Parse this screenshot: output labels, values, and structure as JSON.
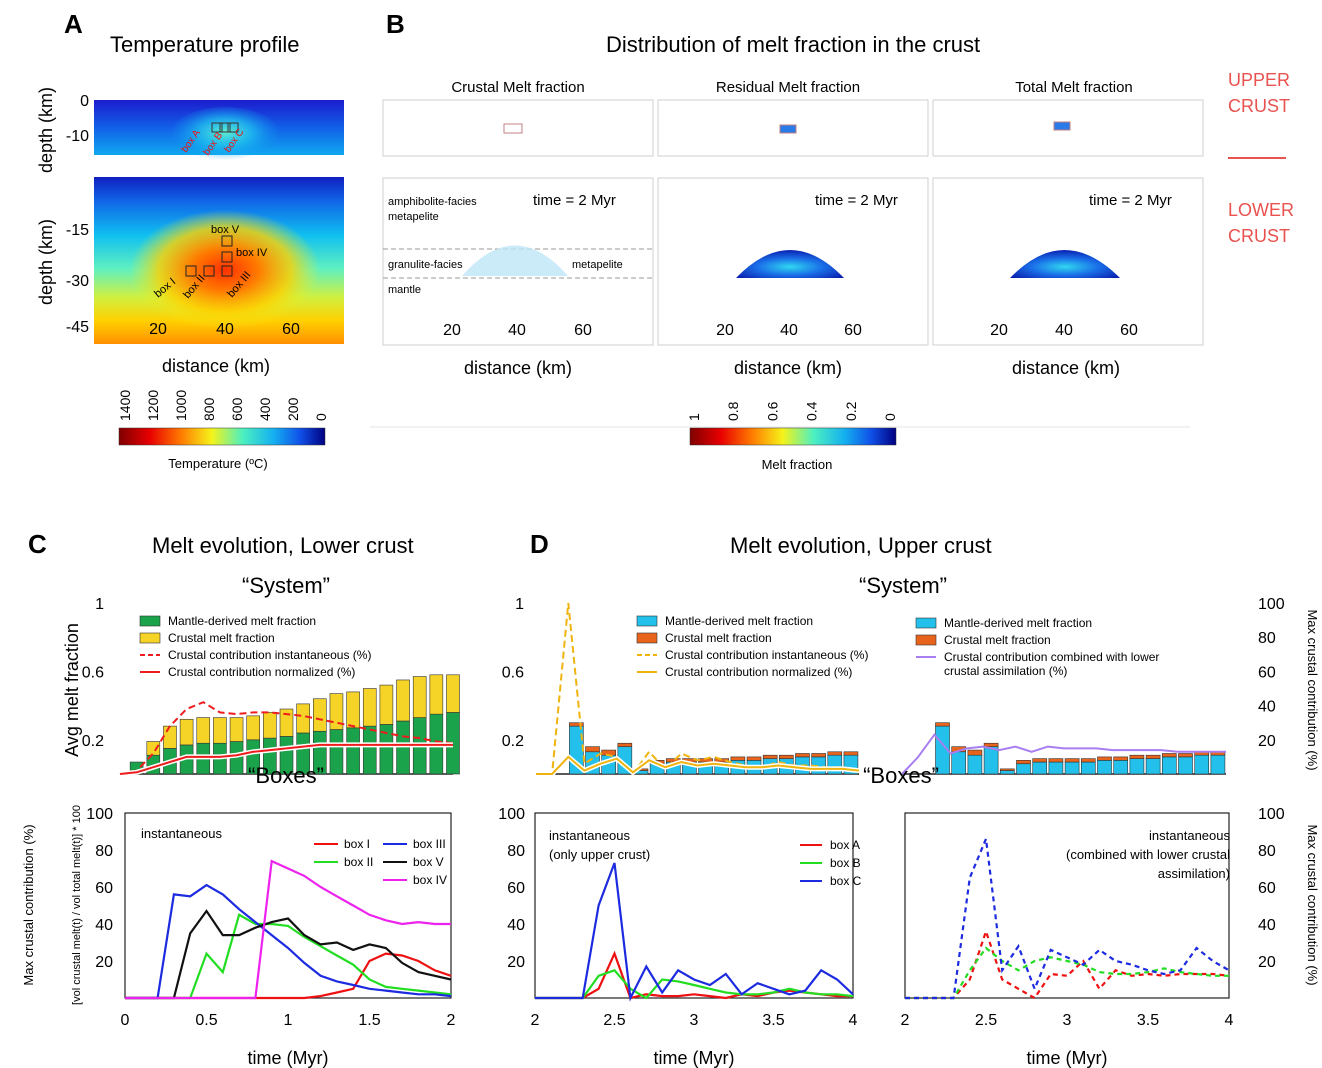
{
  "panels": {
    "A": {
      "letter": "A",
      "title": "Temperature profile"
    },
    "B": {
      "letter": "B",
      "title": "Distribution of melt fraction in the crust"
    },
    "C": {
      "letter": "C",
      "title": "Melt evolution, Lower crust"
    },
    "D": {
      "letter": "D",
      "title": "Melt evolution, Upper crust"
    }
  },
  "colors": {
    "mantle_green": "#1aa34a",
    "crustal_yellow": "#f5d327",
    "cyan": "#22c0ea",
    "orange": "#e8641d",
    "red": "#ee1c1c",
    "gold": "#efb40f",
    "purple": "#a87ef0",
    "box_red": "#ee1111",
    "box_green": "#22dd22",
    "box_blue": "#1d2be0",
    "box_black": "#111111",
    "box_magenta": "#ee22ee",
    "label_red": "#e8524f"
  },
  "temperature": {
    "ylabel": "depth (km)",
    "upper_ticks": [
      "0",
      "-10"
    ],
    "lower_ticks": [
      "-15",
      "-30",
      "-45"
    ],
    "x_ticks": [
      "20",
      "40",
      "60"
    ],
    "xlabel": "distance (km)",
    "upper_boxes": [
      "box A",
      "box B",
      "box C"
    ],
    "lower_boxes": [
      "box V",
      "box IV",
      "box I",
      "box II",
      "box III"
    ],
    "colorbar_ticks": [
      "1400",
      "1200",
      "1000",
      "800",
      "600",
      "400",
      "200",
      "0"
    ],
    "colorbar_label": "Temperature (ºC)"
  },
  "melt": {
    "columns": [
      "Crustal Melt fraction",
      "Residual Melt fraction",
      "Total Melt fraction"
    ],
    "time_label": "time = 2 Myr",
    "rock_labels": [
      "amphibolite-facies",
      "metapelite",
      "granulite-facies",
      "metapelite",
      "mantle"
    ],
    "x_ticks": [
      "20",
      "40",
      "60"
    ],
    "xlabel": "distance (km)",
    "upper_crust": "UPPER CRUST",
    "lower_crust": "LOWER CRUST",
    "colorbar_ticks": [
      "1",
      "0.8",
      "0.6",
      "0.4",
      "0.2",
      "0"
    ],
    "colorbar_label": "Melt fraction"
  },
  "chart_data": [
    {
      "id": "C-system",
      "type": "bar",
      "title": "“System”",
      "ylabel": "Avg melt fraction",
      "ylim": [
        0,
        1
      ],
      "yticks": [
        "1",
        "0.6",
        "0.2"
      ],
      "xlim": [
        0,
        2
      ],
      "x": [
        0.1,
        0.2,
        0.3,
        0.4,
        0.5,
        0.6,
        0.7,
        0.8,
        0.9,
        1.0,
        1.1,
        1.2,
        1.3,
        1.4,
        1.5,
        1.6,
        1.7,
        1.8,
        1.9,
        2.0
      ],
      "series": [
        {
          "name": "Mantle-derived melt fraction",
          "kind": "bar",
          "values": [
            0.07,
            0.11,
            0.15,
            0.17,
            0.18,
            0.18,
            0.19,
            0.2,
            0.21,
            0.22,
            0.24,
            0.25,
            0.26,
            0.27,
            0.28,
            0.29,
            0.31,
            0.33,
            0.35,
            0.36
          ]
        },
        {
          "name": "Crustal melt fraction",
          "kind": "stack",
          "values": [
            0.0,
            0.08,
            0.13,
            0.15,
            0.15,
            0.15,
            0.14,
            0.14,
            0.15,
            0.16,
            0.17,
            0.19,
            0.21,
            0.21,
            0.22,
            0.23,
            0.24,
            0.24,
            0.23,
            0.22
          ]
        },
        {
          "name": "Crustal contribution instantaneous (%)",
          "kind": "dashed",
          "x": [
            0,
            0.1,
            0.2,
            0.3,
            0.4,
            0.5,
            0.6,
            0.7,
            0.8,
            0.9,
            1.0,
            1.1,
            1.2,
            1.3,
            1.4,
            1.5,
            1.6,
            1.7,
            1.8,
            1.9,
            2.0
          ],
          "values": [
            0.0,
            0.02,
            0.12,
            0.28,
            0.38,
            0.42,
            0.36,
            0.35,
            0.36,
            0.36,
            0.35,
            0.34,
            0.32,
            0.3,
            0.28,
            0.26,
            0.24,
            0.22,
            0.21,
            0.19,
            0.18
          ]
        },
        {
          "name": "Crustal contribution normalized (%)",
          "kind": "line",
          "x": [
            0,
            0.1,
            0.2,
            0.3,
            0.4,
            0.5,
            0.6,
            0.7,
            0.8,
            0.9,
            1.0,
            1.1,
            1.2,
            1.3,
            1.4,
            1.5,
            1.6,
            1.7,
            1.8,
            1.9,
            2.0
          ],
          "values": [
            0.0,
            0.01,
            0.04,
            0.07,
            0.1,
            0.1,
            0.1,
            0.11,
            0.13,
            0.14,
            0.15,
            0.16,
            0.17,
            0.17,
            0.17,
            0.17,
            0.17,
            0.17,
            0.17,
            0.17,
            0.17
          ]
        }
      ]
    },
    {
      "id": "D-system-upper",
      "type": "bar",
      "title": "“System”",
      "ylim": [
        0,
        1
      ],
      "yticks": [
        "1",
        "0.6",
        "0.2"
      ],
      "xlim": [
        2,
        4
      ],
      "x": [
        2.25,
        2.35,
        2.45,
        2.55,
        2.65,
        2.75,
        2.85,
        2.95,
        3.05,
        3.15,
        3.25,
        3.35,
        3.45,
        3.55,
        3.65,
        3.75,
        3.85,
        3.95
      ],
      "series": [
        {
          "name": "Mantle-derived melt fraction",
          "kind": "bar",
          "values": [
            0.28,
            0.13,
            0.11,
            0.16,
            0.02,
            0.06,
            0.07,
            0.07,
            0.07,
            0.07,
            0.08,
            0.08,
            0.09,
            0.09,
            0.1,
            0.1,
            0.11,
            0.11
          ]
        },
        {
          "name": "Crustal melt fraction",
          "kind": "stack",
          "values": [
            0.02,
            0.03,
            0.03,
            0.02,
            0.01,
            0.02,
            0.02,
            0.02,
            0.02,
            0.02,
            0.02,
            0.02,
            0.02,
            0.02,
            0.02,
            0.02,
            0.02,
            0.02
          ]
        },
        {
          "name": "Crustal contribution instantaneous (%)",
          "kind": "dashed",
          "x": [
            2.0,
            2.1,
            2.2,
            2.3,
            2.4,
            2.5,
            2.6,
            2.7,
            2.8,
            2.9,
            3.0,
            3.1,
            3.2,
            3.3,
            3.4,
            3.5,
            3.6,
            3.7,
            3.8,
            3.9,
            4.0
          ],
          "values": [
            0.0,
            0.0,
            1.0,
            0.06,
            0.12,
            0.1,
            0.0,
            0.13,
            0.03,
            0.12,
            0.08,
            0.1,
            0.07,
            0.05,
            0.04,
            0.07,
            0.05,
            0.05,
            0.04,
            0.04,
            0.02
          ]
        },
        {
          "name": "Crustal contribution normalized (%)",
          "kind": "line",
          "x": [
            2.0,
            2.1,
            2.2,
            2.3,
            2.4,
            2.5,
            2.6,
            2.7,
            2.8,
            2.9,
            3.0,
            3.1,
            3.2,
            3.3,
            3.4,
            3.5,
            3.6,
            3.7,
            3.8,
            3.9,
            4.0
          ],
          "values": [
            0.0,
            0.0,
            0.1,
            0.02,
            0.06,
            0.09,
            0.01,
            0.08,
            0.04,
            0.07,
            0.05,
            0.06,
            0.05,
            0.04,
            0.04,
            0.05,
            0.04,
            0.03,
            0.03,
            0.03,
            0.02
          ]
        }
      ]
    },
    {
      "id": "D-system-combined",
      "type": "bar",
      "ylabel": "Max crustal contribution (%)",
      "ylim": [
        0,
        100
      ],
      "yticks": [
        "100",
        "80",
        "60",
        "40",
        "20"
      ],
      "xlim": [
        2,
        4
      ],
      "x": [
        2.25,
        2.35,
        2.45,
        2.55,
        2.65,
        2.75,
        2.85,
        2.95,
        3.05,
        3.15,
        3.25,
        3.35,
        3.45,
        3.55,
        3.65,
        3.75,
        3.85,
        3.95
      ],
      "series": [
        {
          "name": "Mantle-derived melt fraction",
          "kind": "bar",
          "values": [
            28,
            13,
            11,
            16,
            2,
            6,
            7,
            7,
            7,
            7,
            8,
            8,
            9,
            9,
            10,
            10,
            11,
            11
          ]
        },
        {
          "name": "Crustal melt fraction",
          "kind": "stack",
          "values": [
            2,
            3,
            3,
            2,
            1,
            2,
            2,
            2,
            2,
            2,
            2,
            2,
            2,
            2,
            2,
            2,
            2,
            2
          ]
        },
        {
          "name": "Crustal contribution combined with lower crustal assimilation (%)",
          "kind": "purple",
          "x": [
            2.0,
            2.1,
            2.2,
            2.3,
            2.4,
            2.5,
            2.6,
            2.7,
            2.8,
            2.9,
            3.0,
            3.1,
            3.2,
            3.3,
            3.4,
            3.5,
            3.6,
            3.7,
            3.8,
            3.9,
            4.0
          ],
          "values": [
            0,
            10,
            23,
            12,
            15,
            16,
            14,
            16,
            13,
            16,
            15,
            15,
            15,
            14,
            14,
            14,
            14,
            13,
            13,
            13,
            13
          ]
        }
      ]
    },
    {
      "id": "C-boxes",
      "type": "line",
      "title": "“Boxes”",
      "annotation": "instantaneous",
      "xlabel": "time (Myr)",
      "ylabel": "Max crustal contribution (%)",
      "ylabel2": "[vol crustal melt(t) / vol total melt(t)] * 100",
      "ylim": [
        0,
        100
      ],
      "yticks": [
        "100",
        "80",
        "60",
        "40",
        "20"
      ],
      "xlim": [
        0,
        2
      ],
      "xticks": [
        "0",
        "0.5",
        "1",
        "1.5",
        "2"
      ],
      "x": [
        0,
        0.1,
        0.2,
        0.3,
        0.4,
        0.5,
        0.6,
        0.7,
        0.8,
        0.9,
        1.0,
        1.1,
        1.2,
        1.3,
        1.4,
        1.5,
        1.6,
        1.7,
        1.8,
        1.9,
        2.0
      ],
      "series": [
        {
          "name": "box I",
          "color": "#ee1111",
          "values": [
            0,
            0,
            0,
            0,
            0,
            0,
            0,
            0,
            0,
            0,
            0,
            0,
            1,
            3,
            5,
            20,
            24,
            23,
            20,
            15,
            12
          ]
        },
        {
          "name": "box II",
          "color": "#22dd22",
          "values": [
            0,
            0,
            0,
            0,
            0,
            24,
            14,
            45,
            40,
            40,
            39,
            33,
            28,
            23,
            18,
            10,
            6,
            5,
            4,
            3,
            2
          ]
        },
        {
          "name": "box III",
          "color": "#1d2be0",
          "values": [
            0,
            0,
            0,
            56,
            55,
            61,
            56,
            48,
            41,
            34,
            27,
            19,
            12,
            9,
            7,
            5,
            4,
            3,
            2,
            2,
            1
          ]
        },
        {
          "name": "box V",
          "color": "#111111",
          "values": [
            0,
            0,
            0,
            0,
            35,
            47,
            34,
            34,
            38,
            41,
            43,
            34,
            29,
            30,
            26,
            29,
            27,
            19,
            14,
            12,
            10
          ]
        },
        {
          "name": "box IV",
          "color": "#ee22ee",
          "values": [
            0,
            0,
            0,
            0,
            0,
            0,
            0,
            0,
            0,
            74,
            70,
            66,
            60,
            55,
            50,
            45,
            42,
            40,
            41,
            40,
            40
          ]
        }
      ]
    },
    {
      "id": "D-boxes-upper",
      "type": "line",
      "title": "“Boxes”",
      "annotation": "instantaneous\n(only upper crust)",
      "xlabel": "time (Myr)",
      "ylim": [
        0,
        100
      ],
      "yticks": [
        "100",
        "80",
        "60",
        "40",
        "20"
      ],
      "xlim": [
        2,
        4
      ],
      "xticks": [
        "2",
        "2.5",
        "3",
        "3.5",
        "4"
      ],
      "x": [
        2.0,
        2.1,
        2.2,
        2.3,
        2.4,
        2.5,
        2.6,
        2.7,
        2.8,
        2.9,
        3.0,
        3.1,
        3.2,
        3.3,
        3.4,
        3.5,
        3.6,
        3.7,
        3.8,
        3.9,
        4.0
      ],
      "series": [
        {
          "name": "box A",
          "color": "#ee1111",
          "values": [
            0,
            0,
            0,
            0,
            5,
            24,
            0,
            2,
            1,
            1,
            2,
            1,
            0,
            2,
            1,
            3,
            4,
            3,
            2,
            1,
            1
          ]
        },
        {
          "name": "box B",
          "color": "#22dd22",
          "values": [
            0,
            0,
            0,
            0,
            12,
            15,
            5,
            0,
            10,
            9,
            7,
            5,
            3,
            2,
            2,
            3,
            5,
            3,
            2,
            2,
            1
          ]
        },
        {
          "name": "box C",
          "color": "#1d2be0",
          "values": [
            0,
            0,
            0,
            0,
            50,
            73,
            0,
            17,
            3,
            15,
            10,
            7,
            13,
            2,
            8,
            5,
            2,
            4,
            15,
            10,
            2
          ]
        }
      ]
    },
    {
      "id": "D-boxes-combined",
      "type": "line",
      "annotation": "instantaneous\n(combined with lower crustal\nassimilation)",
      "xlabel": "time (Myr)",
      "ylabel": "Max crustal contribution (%)",
      "ylim": [
        0,
        100
      ],
      "yticks": [
        "100",
        "80",
        "60",
        "40",
        "20"
      ],
      "xlim": [
        2,
        4
      ],
      "xticks": [
        "2",
        "2.5",
        "3",
        "3.5",
        "4"
      ],
      "x": [
        2.0,
        2.1,
        2.2,
        2.3,
        2.4,
        2.5,
        2.6,
        2.7,
        2.8,
        2.9,
        3.0,
        3.1,
        3.2,
        3.3,
        3.4,
        3.5,
        3.6,
        3.7,
        3.8,
        3.9,
        4.0
      ],
      "series": [
        {
          "name": "box A",
          "color": "#ee1111",
          "values": [
            0,
            0,
            0,
            0,
            10,
            36,
            10,
            5,
            0,
            13,
            12,
            20,
            5,
            15,
            12,
            13,
            12,
            13,
            13,
            13,
            12
          ]
        },
        {
          "name": "box B",
          "color": "#22dd22",
          "values": [
            0,
            0,
            0,
            0,
            15,
            27,
            20,
            15,
            20,
            22,
            20,
            18,
            14,
            13,
            13,
            14,
            16,
            14,
            13,
            12,
            12
          ]
        },
        {
          "name": "box C",
          "color": "#1d2be0",
          "values": [
            0,
            0,
            0,
            0,
            65,
            86,
            15,
            28,
            5,
            26,
            22,
            18,
            26,
            20,
            18,
            15,
            13,
            15,
            27,
            20,
            15
          ]
        }
      ]
    }
  ]
}
